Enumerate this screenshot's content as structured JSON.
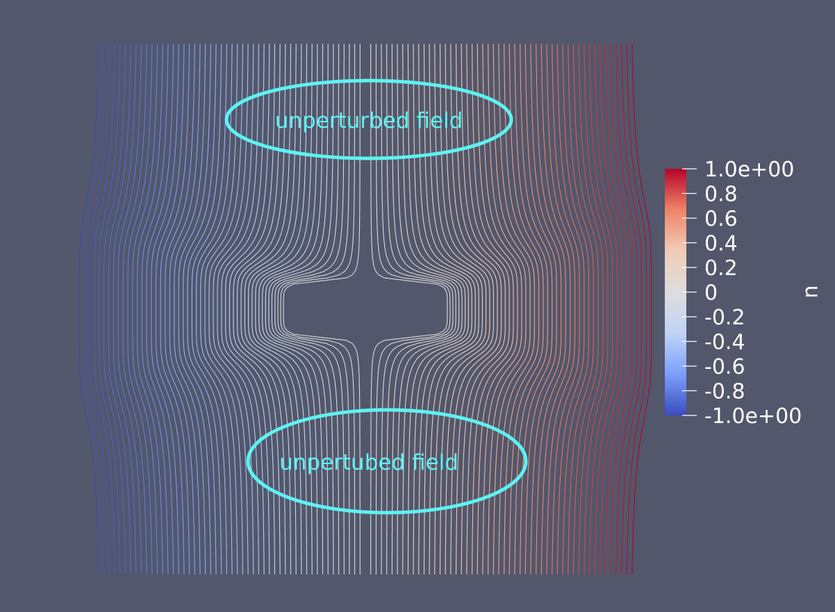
{
  "background": "#52576b",
  "chart_data": {
    "type": "contour",
    "field_name": "u",
    "colormap": "coolwarm",
    "colormap_stops": [
      "#3b4cc0",
      "#7b9ff9",
      "#c0d4f5",
      "#dddddd",
      "#f2cbb7",
      "#ee8468",
      "#b40426"
    ],
    "range": [
      -1.0,
      1.0
    ],
    "domain": {
      "x": [
        -1.0,
        1.0
      ],
      "y": [
        -1.0,
        1.0
      ]
    },
    "contour_levels": 101,
    "obstacle": {
      "shape": "rounded-rectangle",
      "half_width": 0.3,
      "half_height": 0.1
    },
    "colorbar": {
      "title": "u",
      "ticks": [
        "1.0e+00",
        "0.8",
        "0.6",
        "0.4",
        "0.2",
        "0",
        "-0.2",
        "-0.4",
        "-0.6",
        "-0.8",
        "-1.0e+00"
      ],
      "tick_values": [
        1.0,
        0.8,
        0.6,
        0.4,
        0.2,
        0.0,
        -0.2,
        -0.4,
        -0.6,
        -0.8,
        -1.0
      ]
    },
    "annotations": [
      {
        "text": "unperturbed field",
        "color": "#5ef2f2"
      },
      {
        "text": "unpertubed field",
        "color": "#5ef2f2"
      }
    ]
  }
}
